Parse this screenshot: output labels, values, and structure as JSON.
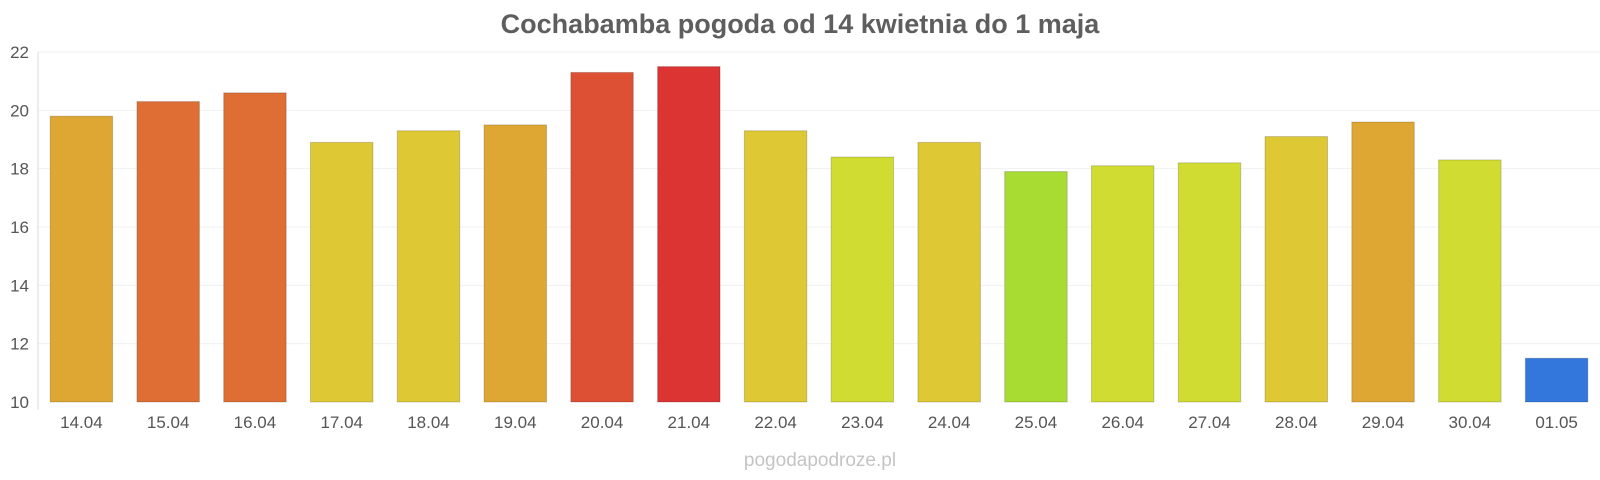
{
  "chart_data": {
    "type": "bar",
    "title": "Cochabamba pogoda od 14 kwietnia do 1 maja",
    "xlabel": "",
    "ylabel": "",
    "categories": [
      "14.04",
      "15.04",
      "16.04",
      "17.04",
      "18.04",
      "19.04",
      "20.04",
      "21.04",
      "22.04",
      "23.04",
      "24.04",
      "25.04",
      "26.04",
      "27.04",
      "28.04",
      "29.04",
      "30.04",
      "01.05"
    ],
    "values": [
      19.8,
      20.3,
      20.6,
      18.9,
      19.3,
      19.5,
      21.3,
      21.5,
      19.3,
      18.4,
      18.9,
      17.9,
      18.1,
      18.2,
      19.1,
      19.6,
      18.3,
      11.5
    ],
    "colors": [
      "#dea733",
      "#de6e33",
      "#de6e33",
      "#dec833",
      "#dec833",
      "#dea733",
      "#de5033",
      "#dc3333",
      "#dec833",
      "#d1dc33",
      "#dec833",
      "#a8dc33",
      "#d1dc33",
      "#d1dc33",
      "#dec833",
      "#dea733",
      "#d1dc33",
      "#3377dd"
    ],
    "ylim": [
      10,
      22
    ],
    "yticks": [
      10,
      12,
      14,
      16,
      18,
      20,
      22
    ],
    "grid": true,
    "legend": "none"
  },
  "watermark": "pogodapodroze.pl"
}
